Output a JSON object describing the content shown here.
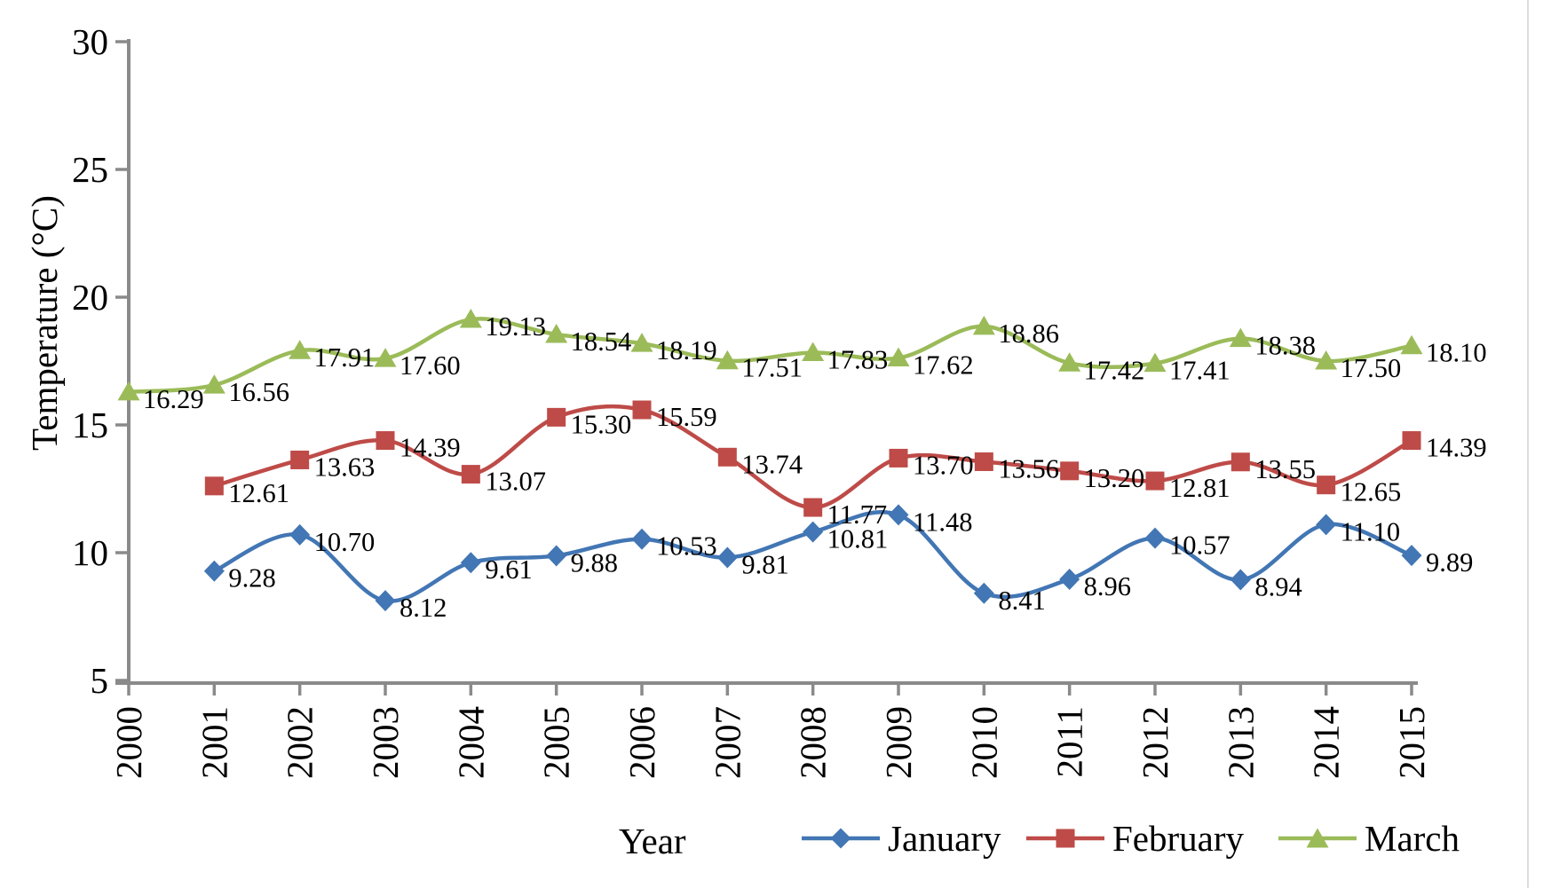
{
  "chart_data": {
    "type": "line",
    "title": "",
    "xlabel": "Year",
    "ylabel": "Temperature (°C)",
    "ylim": [
      5,
      30
    ],
    "yticks": [
      5,
      10,
      15,
      20,
      25,
      30
    ],
    "grid": false,
    "smooth_lines": true,
    "data_labels": "two decimals, right of each marker",
    "legend_position": "bottom",
    "axis_color": "#8a8a8a",
    "label_color": "#000000",
    "categories": [
      "2000",
      "2001",
      "2002",
      "2003",
      "2004",
      "2005",
      "2006",
      "2007",
      "2008",
      "2009",
      "2010",
      "2011",
      "2012",
      "2013",
      "2014",
      "2015"
    ],
    "series": [
      {
        "name": "January",
        "color": "#4276b4",
        "marker": "diamond",
        "values": [
          null,
          9.28,
          10.7,
          8.12,
          9.61,
          9.88,
          10.53,
          9.81,
          10.81,
          11.48,
          8.41,
          8.96,
          10.57,
          8.94,
          11.1,
          9.89
        ]
      },
      {
        "name": "February",
        "color": "#be4b48",
        "marker": "square",
        "values": [
          null,
          12.61,
          13.63,
          14.39,
          13.07,
          15.3,
          15.59,
          13.74,
          11.77,
          13.7,
          13.56,
          13.2,
          12.81,
          13.55,
          12.65,
          14.39
        ]
      },
      {
        "name": "March",
        "color": "#9bbb59",
        "marker": "triangle",
        "values": [
          16.29,
          16.56,
          17.91,
          17.6,
          19.13,
          18.54,
          18.19,
          17.51,
          17.83,
          17.62,
          18.86,
          17.42,
          17.41,
          18.38,
          17.5,
          18.1
        ]
      }
    ]
  }
}
